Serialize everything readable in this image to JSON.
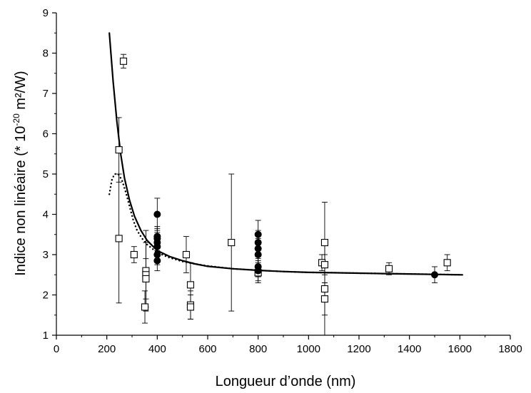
{
  "chart_data": {
    "type": "scatter",
    "xlabel": "Longueur d’onde (nm)",
    "ylabel": {
      "prefix": "Indice non linéaire (* 10",
      "exponent": "-20",
      "suffix": " m²/W)"
    },
    "xlim": [
      0,
      1800
    ],
    "ylim": [
      1,
      9
    ],
    "x_ticks": [
      "0",
      "200",
      "400",
      "600",
      "800",
      "1000",
      "1200",
      "1400",
      "1600",
      "1800"
    ],
    "y_ticks": [
      "1",
      "2",
      "3",
      "4",
      "5",
      "6",
      "7",
      "8",
      "9"
    ],
    "grid": false,
    "series": [
      {
        "marker": "open-square",
        "points": [
          {
            "x": 266,
            "y": 7.8,
            "lo": 7.63,
            "hi": 7.97
          },
          {
            "x": 248,
            "y": 5.6,
            "lo": 4.8,
            "hi": 6.4
          },
          {
            "x": 248,
            "y": 3.4,
            "lo": 1.8,
            "hi": 5.0
          },
          {
            "x": 308,
            "y": 3.0,
            "lo": 2.8,
            "hi": 3.2
          },
          {
            "x": 355,
            "y": 2.6,
            "lo": 1.6,
            "hi": 3.6
          },
          {
            "x": 355,
            "y": 2.5,
            "lo": 1.7,
            "hi": 3.3
          },
          {
            "x": 355,
            "y": 2.4,
            "lo": 1.9,
            "hi": 2.9
          },
          {
            "x": 351,
            "y": 1.7,
            "lo": 1.3,
            "hi": 2.1
          },
          {
            "x": 515,
            "y": 3.0,
            "lo": 2.55,
            "hi": 3.45
          },
          {
            "x": 532,
            "y": 2.25,
            "lo": 1.7,
            "hi": 2.8
          },
          {
            "x": 532,
            "y": 1.75,
            "lo": 1.4,
            "hi": 2.1
          },
          {
            "x": 532,
            "y": 1.7,
            "lo": 1.4,
            "hi": 2.0
          },
          {
            "x": 694,
            "y": 3.3,
            "lo": 1.6,
            "hi": 5.0
          },
          {
            "x": 800,
            "y": 2.55,
            "lo": 2.3,
            "hi": 2.8
          },
          {
            "x": 1053,
            "y": 2.8,
            "lo": 2.6,
            "hi": 3.0
          },
          {
            "x": 1064,
            "y": 3.3,
            "lo": 2.3,
            "hi": 4.3
          },
          {
            "x": 1064,
            "y": 2.75,
            "lo": 2.5,
            "hi": 3.0
          },
          {
            "x": 1064,
            "y": 2.15,
            "lo": 1.0,
            "hi": 3.3
          },
          {
            "x": 1064,
            "y": 1.9,
            "lo": 1.5,
            "hi": 2.3
          },
          {
            "x": 1319,
            "y": 2.65,
            "lo": 2.5,
            "hi": 2.8
          },
          {
            "x": 1550,
            "y": 2.8,
            "lo": 2.6,
            "hi": 3.0
          }
        ]
      },
      {
        "marker": "filled-circle",
        "points": [
          {
            "x": 400,
            "y": 4.0,
            "lo": 3.6,
            "hi": 4.4
          },
          {
            "x": 400,
            "y": 3.45,
            "lo": 3.2,
            "hi": 3.7
          },
          {
            "x": 400,
            "y": 3.4,
            "lo": 3.15,
            "hi": 3.65
          },
          {
            "x": 400,
            "y": 3.3,
            "lo": 3.05,
            "hi": 3.55
          },
          {
            "x": 400,
            "y": 3.2,
            "lo": 2.95,
            "hi": 3.45
          },
          {
            "x": 400,
            "y": 3.0,
            "lo": 2.75,
            "hi": 3.25
          },
          {
            "x": 400,
            "y": 2.85,
            "lo": 2.6,
            "hi": 3.1
          },
          {
            "x": 800,
            "y": 3.5,
            "lo": 3.15,
            "hi": 3.85
          },
          {
            "x": 800,
            "y": 3.3,
            "lo": 3.0,
            "hi": 3.6
          },
          {
            "x": 800,
            "y": 3.15,
            "lo": 2.9,
            "hi": 3.4
          },
          {
            "x": 800,
            "y": 3.0,
            "lo": 2.75,
            "hi": 3.25
          },
          {
            "x": 800,
            "y": 2.7,
            "lo": 2.45,
            "hi": 2.95
          },
          {
            "x": 800,
            "y": 2.6,
            "lo": 2.35,
            "hi": 2.85
          },
          {
            "x": 1500,
            "y": 2.5,
            "lo": 2.3,
            "hi": 2.7
          }
        ]
      },
      {
        "style": "solid-line",
        "x": [
          210,
          225,
          240,
          255,
          270,
          290,
          310,
          335,
          360,
          400,
          450,
          500,
          550,
          600,
          700,
          800,
          900,
          1000,
          1100,
          1200,
          1300,
          1400,
          1500,
          1610
        ],
        "y": [
          8.5,
          7.3,
          6.3,
          5.5,
          4.9,
          4.35,
          3.95,
          3.6,
          3.35,
          3.1,
          2.95,
          2.85,
          2.77,
          2.71,
          2.65,
          2.61,
          2.58,
          2.56,
          2.55,
          2.54,
          2.53,
          2.52,
          2.51,
          2.5
        ]
      },
      {
        "style": "dotted-line",
        "x": [
          210,
          220,
          230,
          245,
          260,
          275,
          290,
          305,
          320,
          340,
          360,
          380,
          400,
          450,
          500,
          550,
          600,
          700,
          800,
          900,
          1000,
          1100,
          1200,
          1300,
          1400,
          1500,
          1610
        ],
        "y": [
          4.5,
          4.85,
          5.0,
          5.0,
          4.85,
          4.55,
          4.2,
          3.85,
          3.6,
          3.4,
          3.25,
          3.15,
          3.05,
          2.92,
          2.83,
          2.77,
          2.72,
          2.65,
          2.61,
          2.58,
          2.56,
          2.55,
          2.54,
          2.53,
          2.52,
          2.51,
          2.5
        ]
      }
    ]
  }
}
